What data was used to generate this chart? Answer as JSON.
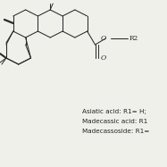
{
  "background_color": "#f0f0eb",
  "text_lines": [
    "Asiatic acid: R1= H;",
    "Madecassic acid: R1",
    "Madecassoside: R1="
  ],
  "text_fontsize": 5.2,
  "text_color": "#222222",
  "struct_color": "#2a2a2a",
  "lw": 0.75
}
